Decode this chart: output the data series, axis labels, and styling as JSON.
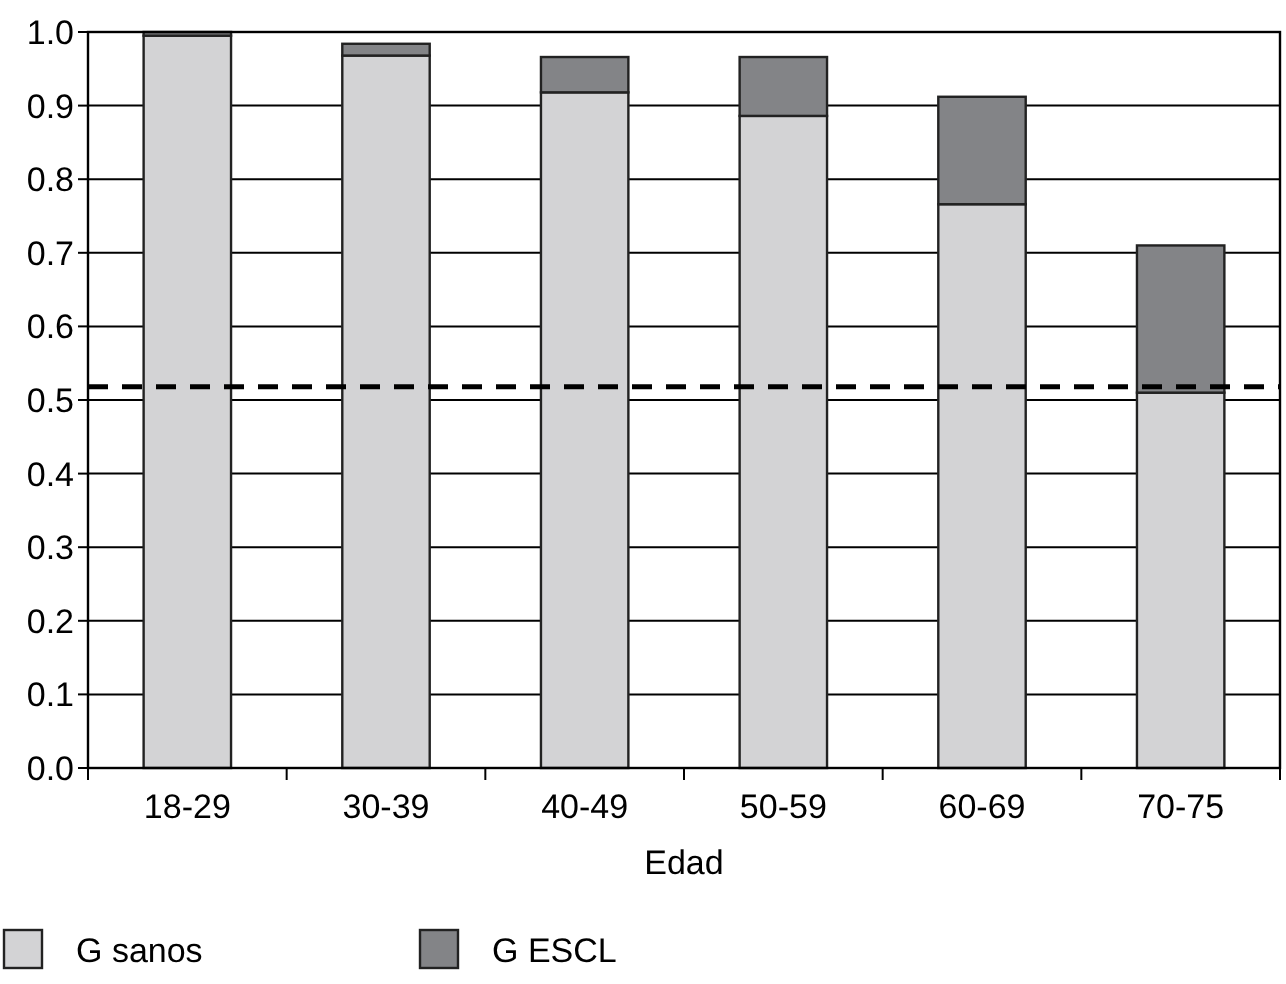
{
  "chart_data": {
    "type": "bar",
    "xlabel": "Edad",
    "categories": [
      "18-29",
      "30-39",
      "40-49",
      "50-59",
      "60-69",
      "70-75"
    ],
    "stacked": true,
    "series": [
      {
        "name": "G sanos",
        "color": "#d3d3d5",
        "values": [
          0.995,
          0.968,
          0.918,
          0.886,
          0.766,
          0.51
        ]
      },
      {
        "name": "G ESCL",
        "color": "#838487",
        "values": [
          0.005,
          0.016,
          0.048,
          0.08,
          0.146,
          0.2
        ]
      }
    ],
    "ylim": [
      0,
      1
    ],
    "yticks": [
      {
        "value": 0,
        "label": "0.0"
      },
      0.1,
      0.2,
      0.3,
      0.4,
      0.5,
      0.6,
      0.7,
      0.8,
      0.9,
      {
        "value": 1,
        "label": "1.0"
      }
    ],
    "grid": "y",
    "legend": "bottom left",
    "ref_lines": [
      {
        "axis": "y",
        "value": 0.518,
        "line_style": "dashed",
        "color": "#000000"
      }
    ]
  }
}
